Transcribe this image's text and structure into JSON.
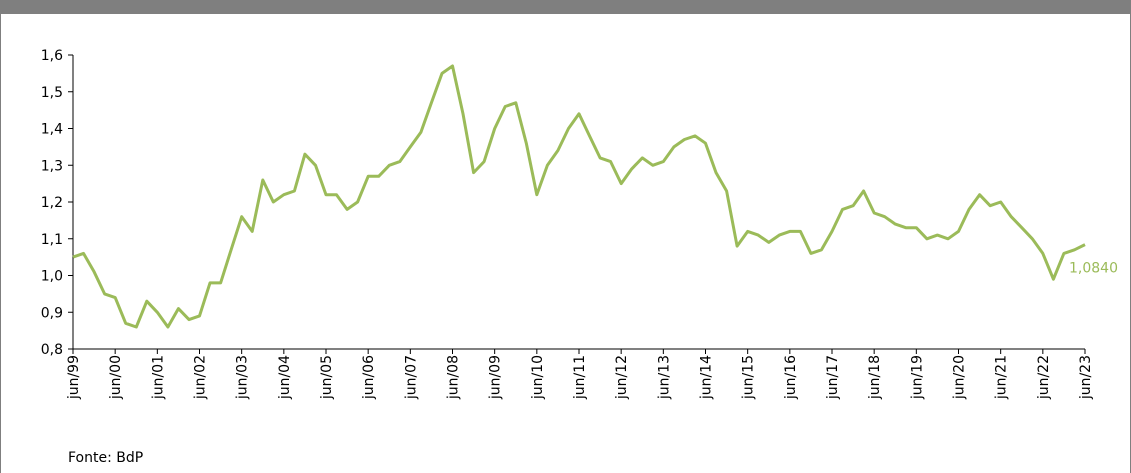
{
  "chart_data": {
    "type": "line",
    "categories": [
      "jun/99",
      null,
      null,
      null,
      "jun/00",
      null,
      null,
      null,
      "jun/01",
      null,
      null,
      null,
      "jun/02",
      null,
      null,
      null,
      "jun/03",
      null,
      null,
      null,
      "jun/04",
      null,
      null,
      null,
      "jun/05",
      null,
      null,
      null,
      "jun/06",
      null,
      null,
      null,
      "jun/07",
      null,
      null,
      null,
      "jun/08",
      null,
      null,
      null,
      "jun/09",
      null,
      null,
      null,
      "jun/10",
      null,
      null,
      null,
      "jun/11",
      null,
      null,
      null,
      "jun/12",
      null,
      null,
      null,
      "jun/13",
      null,
      null,
      null,
      "jun/14",
      null,
      null,
      null,
      "jun/15",
      null,
      null,
      null,
      "jun/16",
      null,
      null,
      null,
      "jun/17",
      null,
      null,
      null,
      "jun/18",
      null,
      null,
      null,
      "jun/19",
      null,
      null,
      null,
      "jun/20",
      null,
      null,
      null,
      "jun/21",
      null,
      null,
      null,
      "jun/22",
      null,
      null,
      null,
      "jun/23"
    ],
    "series": [
      {
        "color": "#9bbb59",
        "values": [
          1.05,
          1.06,
          1.01,
          0.95,
          0.94,
          0.87,
          0.86,
          0.93,
          0.9,
          0.86,
          0.91,
          0.88,
          0.89,
          0.98,
          0.98,
          1.07,
          1.16,
          1.12,
          1.26,
          1.2,
          1.22,
          1.23,
          1.33,
          1.3,
          1.22,
          1.22,
          1.18,
          1.2,
          1.27,
          1.27,
          1.3,
          1.31,
          1.35,
          1.39,
          1.47,
          1.55,
          1.57,
          1.44,
          1.28,
          1.31,
          1.4,
          1.46,
          1.47,
          1.36,
          1.22,
          1.3,
          1.34,
          1.4,
          1.44,
          1.38,
          1.32,
          1.31,
          1.25,
          1.29,
          1.32,
          1.3,
          1.31,
          1.35,
          1.37,
          1.38,
          1.36,
          1.28,
          1.23,
          1.08,
          1.12,
          1.11,
          1.09,
          1.11,
          1.12,
          1.12,
          1.06,
          1.07,
          1.12,
          1.18,
          1.19,
          1.23,
          1.17,
          1.16,
          1.14,
          1.13,
          1.13,
          1.1,
          1.11,
          1.1,
          1.12,
          1.18,
          1.22,
          1.19,
          1.2,
          1.16,
          1.13,
          1.1,
          1.06,
          0.99,
          1.06,
          1.07,
          1.084
        ],
        "value_labels": [
          null,
          null,
          null,
          null,
          null,
          null,
          null,
          null,
          null,
          null,
          null,
          null,
          null,
          null,
          null,
          null,
          null,
          null,
          null,
          null,
          null,
          null,
          null,
          null,
          null,
          null,
          null,
          null,
          null,
          null,
          null,
          null,
          null,
          null,
          null,
          null,
          null,
          null,
          null,
          null,
          null,
          null,
          null,
          null,
          null,
          null,
          null,
          null,
          null,
          null,
          null,
          null,
          null,
          null,
          null,
          null,
          null,
          null,
          null,
          null,
          null,
          null,
          null,
          null,
          null,
          null,
          null,
          null,
          null,
          null,
          null,
          null,
          null,
          null,
          null,
          null,
          null,
          null,
          null,
          null,
          null,
          null,
          null,
          null,
          null,
          null,
          null,
          null,
          null,
          null,
          null,
          null,
          null,
          null,
          null,
          null,
          "1,0840"
        ]
      }
    ],
    "ylim": [
      0.8,
      1.6
    ],
    "yticks": [
      {
        "value": 0.8,
        "label": "0,8"
      },
      {
        "value": 0.9,
        "label": "0,9"
      },
      {
        "value": 1.0,
        "label": "1,0"
      },
      {
        "value": 1.1,
        "label": "1,1"
      },
      {
        "value": 1.2,
        "label": "1,2"
      },
      {
        "value": 1.3,
        "label": "1,3"
      },
      {
        "value": 1.4,
        "label": "1,4"
      },
      {
        "value": 1.5,
        "label": "1,5"
      },
      {
        "value": 1.6,
        "label": "1,6"
      }
    ],
    "source": "Fonte: BdP"
  }
}
